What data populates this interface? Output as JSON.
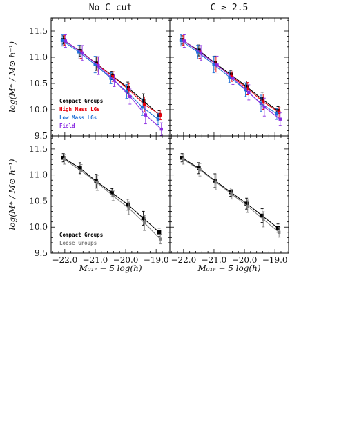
{
  "chart_data": {
    "type": "line",
    "columns": [
      "No C cut",
      "C ≥ 2.5"
    ],
    "xlabel": "M₀₁ᵣ − 5 log(h)",
    "ylabel": "log(M* / M⊙ h⁻¹)",
    "xlim": [
      -22.45,
      -18.55
    ],
    "ylim": [
      9.5,
      11.75
    ],
    "xticks": [
      -22.0,
      -21.0,
      -20.0,
      -19.0
    ],
    "yticks": [
      9.5,
      10.0,
      10.5,
      11.0,
      11.5
    ],
    "x": [
      -22.05,
      -21.5,
      -20.97,
      -20.45,
      -19.93,
      -19.42,
      -18.9
    ],
    "panels": [
      {
        "id": "top-left",
        "series": [
          {
            "name": "Compact Groups",
            "color": "#000000",
            "values": [
              11.33,
              11.12,
              10.88,
              10.65,
              10.42,
              10.17,
              9.9
            ]
          },
          {
            "name": "High Mass LGs",
            "color": "#e8000b",
            "values": [
              11.32,
              11.1,
              10.86,
              10.63,
              10.38,
              10.1,
              9.9
            ]
          },
          {
            "name": "Low Mass LGs",
            "color": "#1f6fd6",
            "values": [
              11.32,
              11.1,
              10.86,
              10.6,
              10.35,
              10.05,
              9.82
            ]
          },
          {
            "name": "Field",
            "color": "#8a2be2",
            "values": [
              11.31,
              11.08,
              10.84,
              10.56,
              10.25,
              9.9,
              9.63
            ]
          }
        ],
        "legend": [
          "Compact Groups",
          "High Mass LGs",
          "Low Mass LGs",
          "Field"
        ]
      },
      {
        "id": "top-right",
        "series": [
          {
            "name": "Compact Groups",
            "color": "#000000",
            "values": [
              11.33,
              11.13,
              10.89,
              10.67,
              10.44,
              10.2,
              9.98
            ]
          },
          {
            "name": "High Mass LGs",
            "color": "#e8000b",
            "values": [
              11.32,
              11.1,
              10.86,
              10.63,
              10.4,
              10.15,
              9.95
            ]
          },
          {
            "name": "Low Mass LGs",
            "color": "#1f6fd6",
            "values": [
              11.32,
              11.1,
              10.86,
              10.62,
              10.38,
              10.12,
              9.92
            ]
          },
          {
            "name": "Field",
            "color": "#8a2be2",
            "values": [
              11.31,
              11.08,
              10.85,
              10.6,
              10.33,
              10.05,
              9.82
            ]
          }
        ],
        "legend": []
      },
      {
        "id": "bottom-left",
        "series": [
          {
            "name": "Compact Groups",
            "color": "#000000",
            "values": [
              11.33,
              11.13,
              10.88,
              10.66,
              10.43,
              10.17,
              9.9
            ]
          },
          {
            "name": "Loose Groups",
            "color": "#808080",
            "values": [
              11.3,
              11.08,
              10.85,
              10.6,
              10.36,
              10.08,
              9.77
            ]
          }
        ],
        "legend": [
          "Compact Groups",
          "Loose Groups"
        ]
      },
      {
        "id": "bottom-right",
        "series": [
          {
            "name": "Compact Groups",
            "color": "#000000",
            "values": [
              11.33,
              11.13,
              10.89,
              10.67,
              10.45,
              10.22,
              9.98
            ]
          },
          {
            "name": "Loose Groups",
            "color": "#808080",
            "values": [
              11.3,
              11.1,
              10.86,
              10.63,
              10.4,
              10.15,
              9.9
            ]
          }
        ],
        "legend": []
      }
    ]
  }
}
